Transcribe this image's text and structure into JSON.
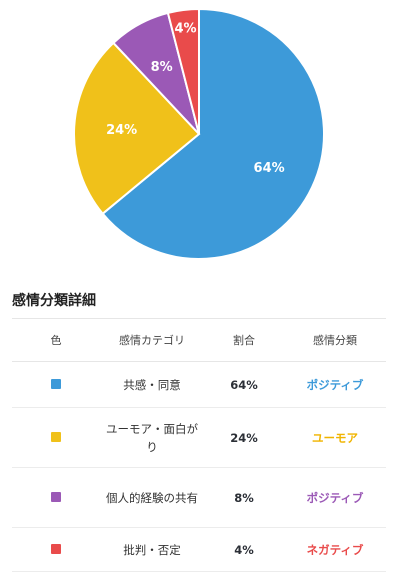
{
  "chart_data": {
    "type": "pie",
    "categories": [
      "共感・同意",
      "ユーモア・面白がり",
      "個人的経験の共有",
      "批判・否定"
    ],
    "values": [
      64,
      24,
      8,
      4
    ],
    "labels": [
      "64%",
      "24%",
      "8%",
      "4%"
    ],
    "colors": [
      "#3d9ad9",
      "#f0c11a",
      "#9b59b6",
      "#e94b4b"
    ]
  },
  "section": {
    "title": "感情分類詳細"
  },
  "table": {
    "headers": {
      "color": "色",
      "category": "感情カテゴリ",
      "ratio": "割合",
      "class": "感情分類"
    },
    "rows": [
      {
        "color": "#3d9ad9",
        "category": "共感・同意",
        "ratio": "64%",
        "class": "ポジティブ",
        "class_color": "#3d9ad9"
      },
      {
        "color": "#f0c11a",
        "category": "ユーモア・面白がり",
        "ratio": "24%",
        "class": "ユーモア",
        "class_color": "#f0b400"
      },
      {
        "color": "#9b59b6",
        "category": "個人的経験の共有",
        "ratio": "8%",
        "class": "ポジティブ",
        "class_color": "#9b59b6"
      },
      {
        "color": "#e94b4b",
        "category": "批判・否定",
        "ratio": "4%",
        "class": "ネガティブ",
        "class_color": "#e94b4b"
      }
    ]
  }
}
